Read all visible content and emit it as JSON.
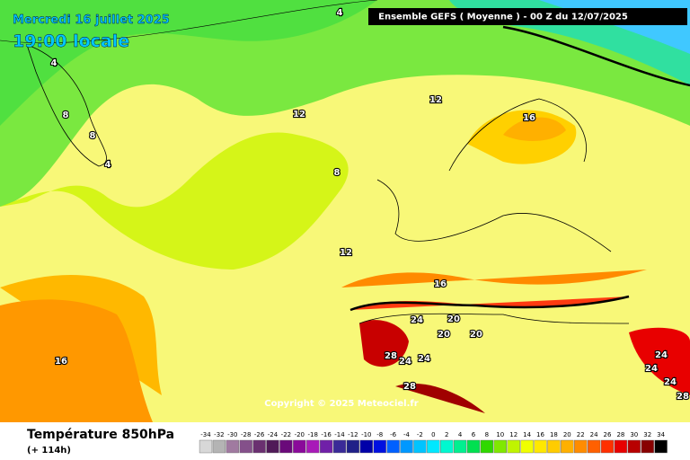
{
  "header": {
    "date": "Mercredi 16 juillet 2025",
    "time": "19:00 locale",
    "run": "Ensemble GEFS  ( Moyenne )  -  00 Z du 12/07/2025"
  },
  "copyright": "Copyright © 2025 Meteociel.fr",
  "footer": {
    "variable": "Température 850hPa",
    "lead": "(+ 114h)"
  },
  "legend": {
    "values": [
      -34,
      -32,
      -30,
      -28,
      -26,
      -24,
      -22,
      -20,
      -18,
      -16,
      -14,
      -12,
      -10,
      -8,
      -6,
      -4,
      -2,
      0,
      2,
      4,
      6,
      8,
      10,
      12,
      14,
      16,
      18,
      20,
      22,
      24,
      26,
      28,
      30,
      32,
      34
    ],
    "colors": [
      "#d8d8d8",
      "#b4b4b4",
      "#a07aa0",
      "#84508a",
      "#6a3070",
      "#501a58",
      "#6a0a7a",
      "#8a0a9a",
      "#a81ab8",
      "#7020a8",
      "#3a2a98",
      "#202088",
      "#0000a8",
      "#0010e0",
      "#0060ff",
      "#0098ff",
      "#00c4ff",
      "#00e8ff",
      "#00f8d0",
      "#00f090",
      "#00e050",
      "#30d800",
      "#80e800",
      "#c0f400",
      "#f0ff00",
      "#ffe800",
      "#ffcc00",
      "#ffb000",
      "#ff8c00",
      "#ff6000",
      "#ff3000",
      "#e80000",
      "#b80000",
      "#880000",
      "#000000"
    ]
  },
  "contour_labels": [
    4,
    4,
    8,
    8,
    4,
    12,
    12,
    16,
    8,
    12,
    16,
    24,
    20,
    20,
    20,
    28,
    24,
    24,
    28,
    16,
    24,
    24,
    24,
    28
  ]
}
